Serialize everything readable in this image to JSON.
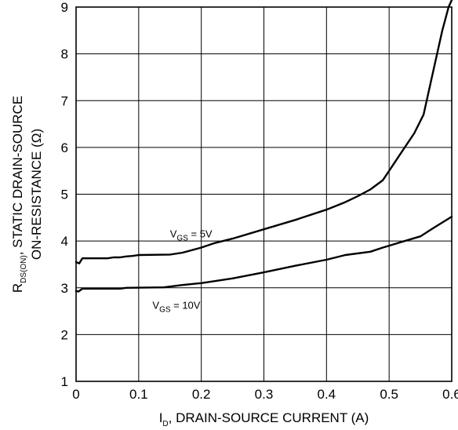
{
  "chart_data": {
    "type": "line",
    "xlabel": {
      "main": "I",
      "sub": "D",
      "rest": ", DRAIN-SOURCE CURRENT (A)"
    },
    "ylabel": {
      "line1": {
        "main": "R",
        "sub": "DS(ON)",
        "rest": ", STATIC DRAIN-SOURCE"
      },
      "line2": "ON-RESISTANCE (Ω)"
    },
    "xlim": [
      0,
      0.6
    ],
    "ylim": [
      1,
      9
    ],
    "x_ticks": [
      0,
      0.1,
      0.2,
      0.3,
      0.4,
      0.5,
      0.6
    ],
    "x_tick_labels": [
      "0",
      "0.1",
      "0.2",
      "0.3",
      "0.4",
      "0.5",
      "0.6"
    ],
    "y_ticks": [
      1,
      2,
      3,
      4,
      5,
      6,
      7,
      8,
      9
    ],
    "y_tick_labels": [
      "1",
      "2",
      "3",
      "4",
      "5",
      "6",
      "7",
      "8",
      "9"
    ],
    "grid": true,
    "series": [
      {
        "name": {
          "main": "V",
          "sub": "GS",
          "rest": " = 5V"
        },
        "label_at": [
          0.15,
          4.08
        ],
        "points": [
          [
            0,
            3.55
          ],
          [
            0.005,
            3.52
          ],
          [
            0.01,
            3.63
          ],
          [
            0.05,
            3.63
          ],
          [
            0.06,
            3.65
          ],
          [
            0.07,
            3.65
          ],
          [
            0.08,
            3.67
          ],
          [
            0.09,
            3.68
          ],
          [
            0.1,
            3.7
          ],
          [
            0.15,
            3.71
          ],
          [
            0.17,
            3.75
          ],
          [
            0.2,
            3.86
          ],
          [
            0.22,
            3.95
          ],
          [
            0.25,
            4.05
          ],
          [
            0.3,
            4.25
          ],
          [
            0.35,
            4.45
          ],
          [
            0.4,
            4.67
          ],
          [
            0.43,
            4.83
          ],
          [
            0.45,
            4.96
          ],
          [
            0.47,
            5.1
          ],
          [
            0.49,
            5.3
          ],
          [
            0.5,
            5.5
          ],
          [
            0.52,
            5.9
          ],
          [
            0.54,
            6.3
          ],
          [
            0.555,
            6.7
          ],
          [
            0.57,
            7.6
          ],
          [
            0.585,
            8.5
          ],
          [
            0.595,
            9.0
          ],
          [
            0.6,
            9.15
          ]
        ]
      },
      {
        "name": {
          "main": "V",
          "sub": "GS",
          "rest": " = 10V"
        },
        "label_at": [
          0.122,
          2.55
        ],
        "points": [
          [
            0,
            2.93
          ],
          [
            0.004,
            2.92
          ],
          [
            0.01,
            2.98
          ],
          [
            0.07,
            2.98
          ],
          [
            0.08,
            3.0
          ],
          [
            0.14,
            3.01
          ],
          [
            0.17,
            3.06
          ],
          [
            0.2,
            3.1
          ],
          [
            0.25,
            3.2
          ],
          [
            0.3,
            3.33
          ],
          [
            0.35,
            3.47
          ],
          [
            0.4,
            3.6
          ],
          [
            0.43,
            3.7
          ],
          [
            0.47,
            3.77
          ],
          [
            0.49,
            3.86
          ],
          [
            0.5,
            3.9
          ],
          [
            0.52,
            3.98
          ],
          [
            0.55,
            4.1
          ],
          [
            0.57,
            4.27
          ],
          [
            0.6,
            4.52
          ]
        ]
      }
    ]
  }
}
